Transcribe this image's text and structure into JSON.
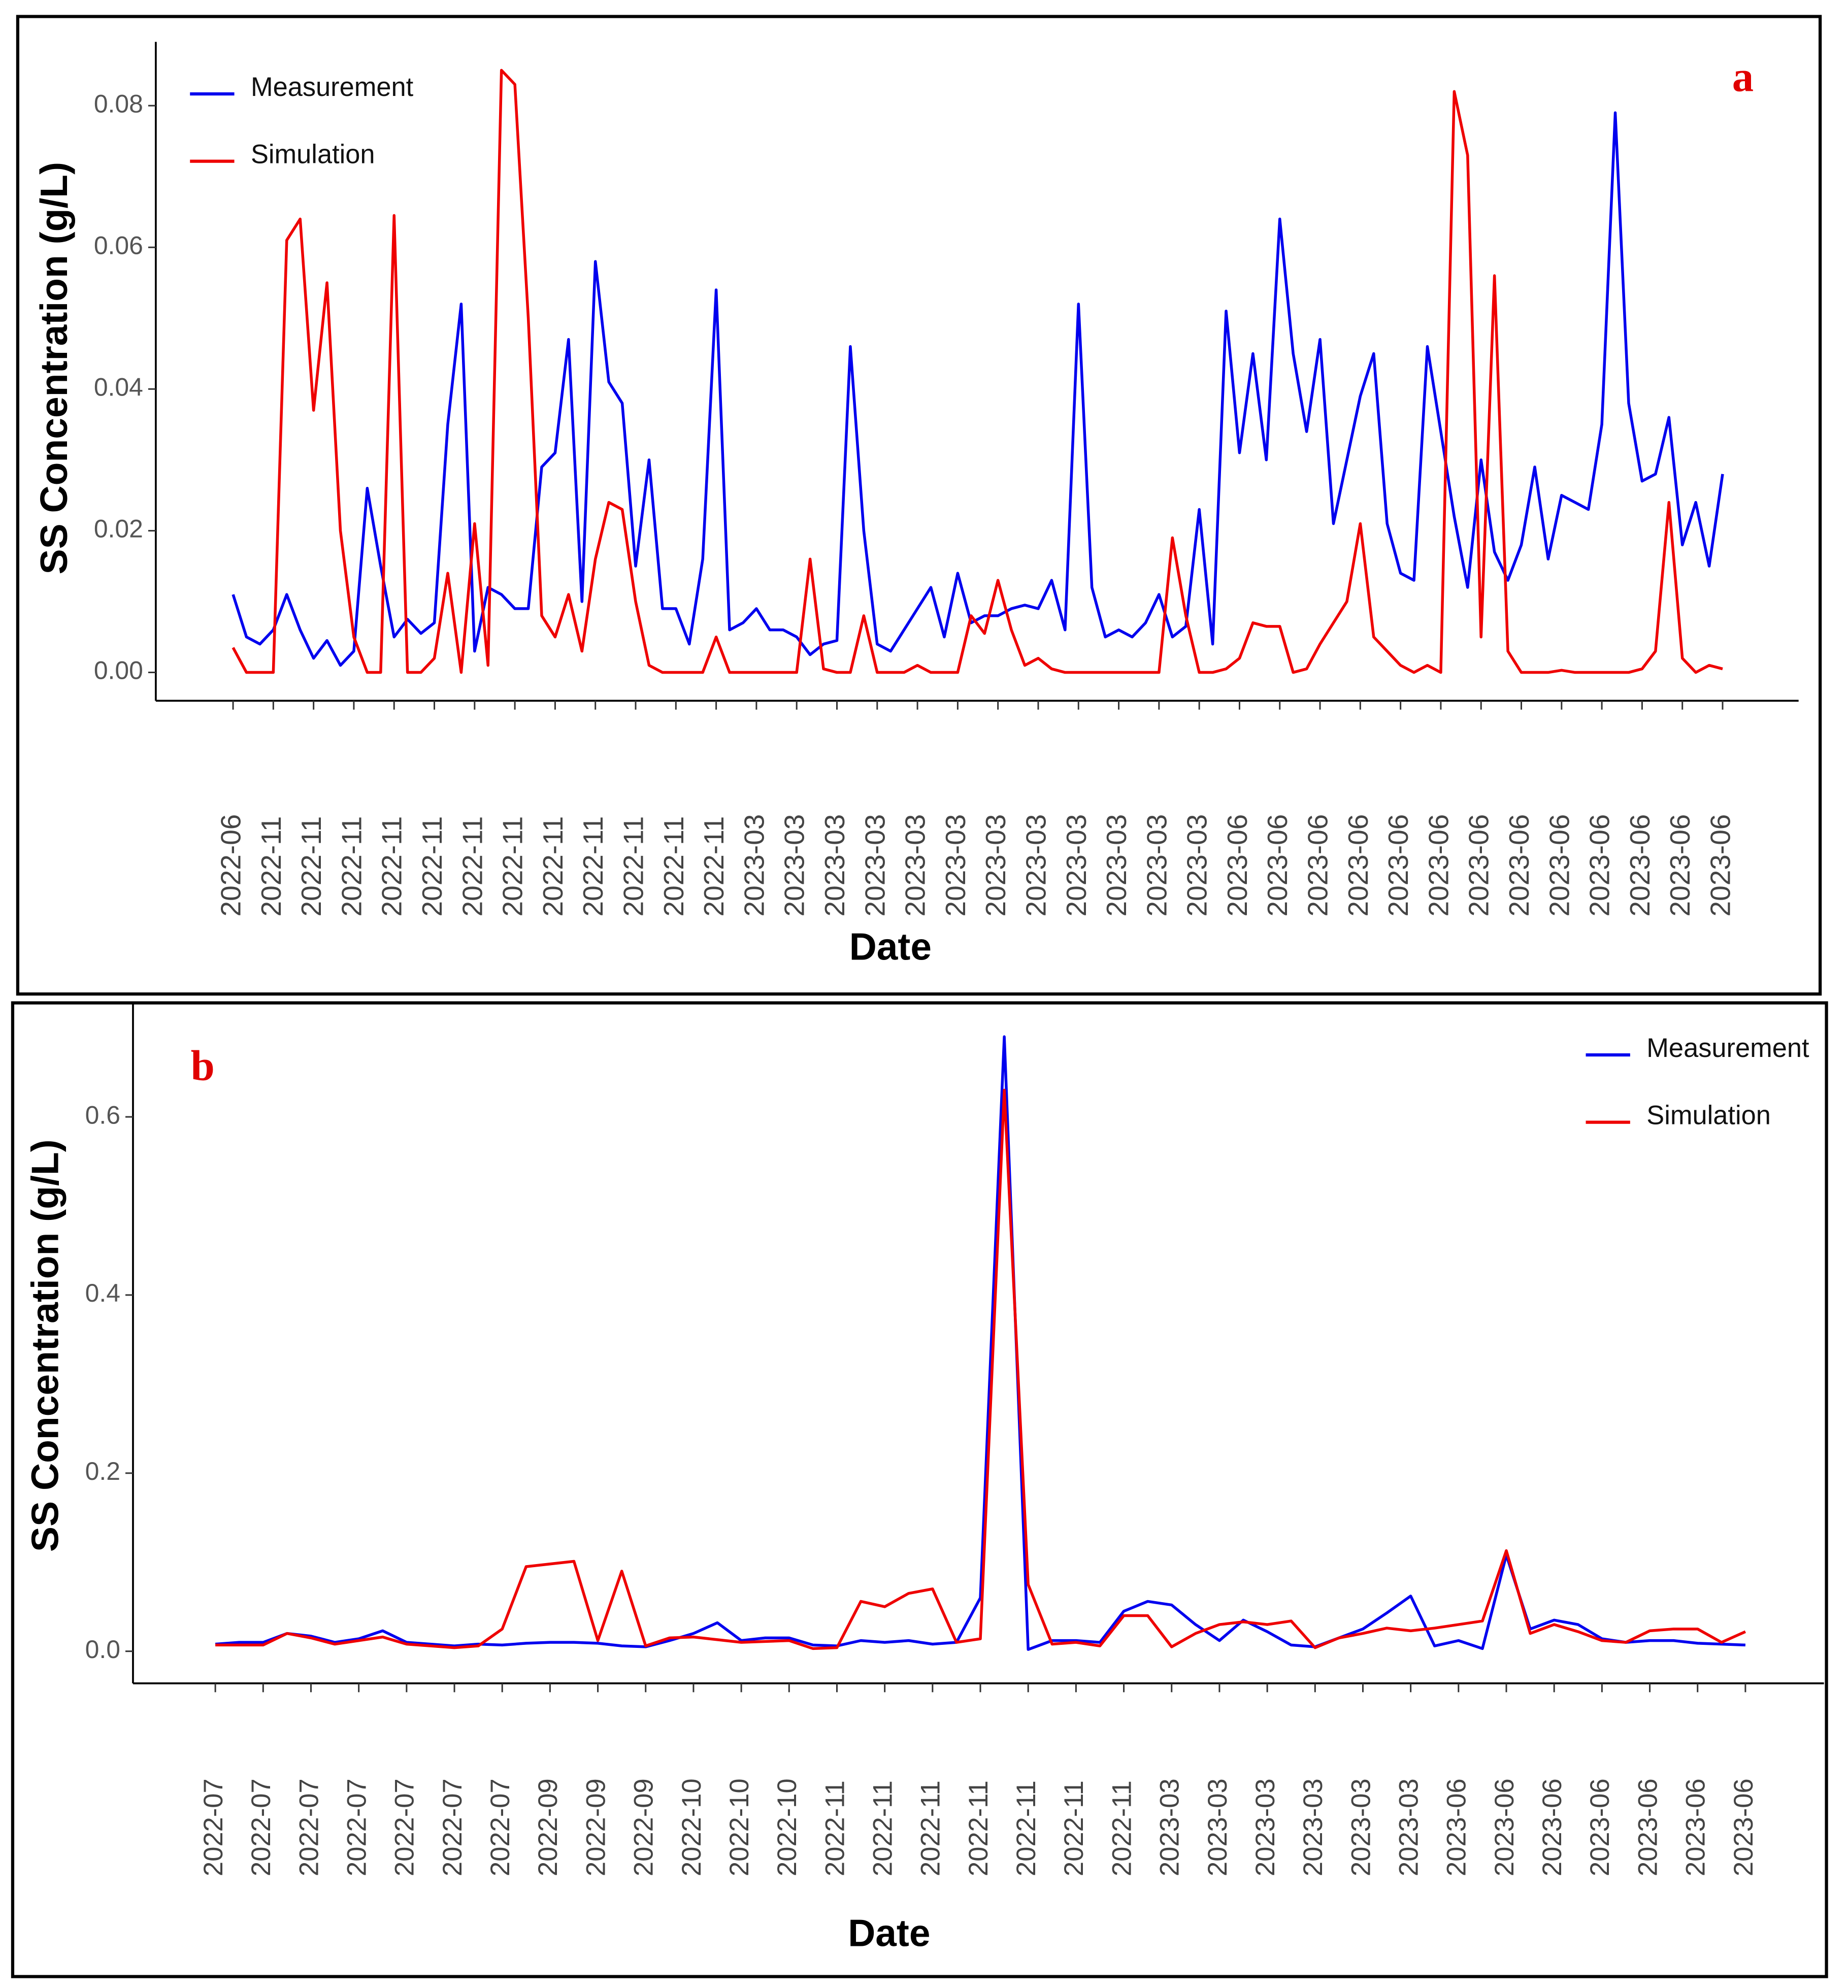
{
  "chart_data": [
    {
      "type": "line",
      "annotation": "a",
      "y_label": "SS Concentration (g/L)",
      "x_label": "Date",
      "legend": "upper left",
      "grid": false,
      "categories": [
        "2022-06",
        null,
        null,
        "2022-11",
        null,
        null,
        "2022-11",
        null,
        null,
        "2022-11",
        null,
        null,
        "2022-11",
        null,
        null,
        "2022-11",
        null,
        null,
        "2022-11",
        null,
        null,
        "2022-11",
        null,
        null,
        "2022-11",
        null,
        null,
        "2022-11",
        null,
        null,
        "2022-11",
        null,
        null,
        "2022-11",
        null,
        null,
        "2022-11",
        null,
        null,
        "2023-03",
        null,
        null,
        "2023-03",
        null,
        null,
        "2023-03",
        null,
        null,
        "2023-03",
        null,
        null,
        "2023-03",
        null,
        null,
        "2023-03",
        null,
        null,
        "2023-03",
        null,
        null,
        "2023-03",
        null,
        null,
        "2023-03",
        null,
        null,
        "2023-03",
        null,
        null,
        "2023-03",
        null,
        null,
        "2023-03",
        null,
        null,
        "2023-06",
        null,
        null,
        "2023-06",
        null,
        null,
        "2023-06",
        null,
        null,
        "2023-06",
        null,
        null,
        "2023-06",
        null,
        null,
        "2023-06",
        null,
        null,
        "2023-06",
        null,
        null,
        "2023-06",
        null,
        null,
        "2023-06",
        null,
        null,
        "2023-06",
        null,
        null,
        "2023-06",
        null,
        null,
        "2023-06",
        null,
        null,
        "2023-06"
      ],
      "series": [
        {
          "name": "Measurement",
          "color": "#0000ee",
          "values": [
            0.011,
            0.005,
            0.004,
            0.006,
            0.011,
            0.006,
            0.002,
            0.0045,
            0.001,
            0.003,
            0.026,
            0.015,
            0.005,
            0.0075,
            0.0055,
            0.007,
            0.035,
            0.052,
            0.003,
            0.012,
            0.011,
            0.009,
            0.009,
            0.029,
            0.031,
            0.047,
            0.01,
            0.058,
            0.041,
            0.038,
            0.015,
            0.03,
            0.009,
            0.009,
            0.004,
            0.016,
            0.054,
            0.006,
            0.007,
            0.009,
            0.006,
            0.006,
            0.005,
            0.0025,
            0.004,
            0.0045,
            0.046,
            0.02,
            0.004,
            0.003,
            0.006,
            0.009,
            0.012,
            0.005,
            0.014,
            0.007,
            0.008,
            0.008,
            0.009,
            0.0095,
            0.009,
            0.013,
            0.006,
            0.052,
            0.012,
            0.005,
            0.006,
            0.005,
            0.007,
            0.011,
            0.005,
            0.0065,
            0.023,
            0.004,
            0.051,
            0.031,
            0.045,
            0.03,
            0.064,
            0.045,
            0.034,
            0.047,
            0.021,
            0.03,
            0.039,
            0.045,
            0.021,
            0.014,
            0.013,
            0.046,
            0.034,
            0.022,
            0.012,
            0.03,
            0.017,
            0.013,
            0.018,
            0.029,
            0.016,
            0.025,
            0.024,
            0.023,
            0.035,
            0.079,
            0.038,
            0.027,
            0.028,
            0.036,
            0.018,
            0.024,
            0.015,
            0.028
          ]
        },
        {
          "name": "Simulation",
          "color": "#ee0000",
          "values": [
            0.0035,
            0,
            0,
            0,
            0.061,
            0.064,
            0.037,
            0.055,
            0.02,
            0.005,
            0,
            0,
            0.0645,
            0,
            0,
            0.002,
            0.014,
            0,
            0.021,
            0.001,
            0.085,
            0.083,
            0.05,
            0.008,
            0.005,
            0.011,
            0.003,
            0.016,
            0.024,
            0.023,
            0.01,
            0.001,
            0,
            0,
            0,
            0,
            0.005,
            0,
            0,
            0,
            0,
            0,
            0,
            0.016,
            0.0005,
            0,
            0,
            0.008,
            0,
            0,
            0,
            0.001,
            0,
            0,
            0,
            0.008,
            0.0055,
            0.013,
            0.006,
            0.001,
            0.002,
            0.0005,
            0,
            0,
            0,
            0,
            0,
            0,
            0,
            0,
            0.019,
            0.008,
            0,
            0,
            0.0005,
            0.002,
            0.007,
            0.0065,
            0.0065,
            0,
            0.0005,
            0.004,
            0.007,
            0.01,
            0.021,
            0.005,
            0.003,
            0.001,
            0,
            0.001,
            0,
            0.082,
            0.073,
            0.005,
            0.056,
            0.003,
            0,
            0,
            0,
            0.0003,
            0,
            0,
            0,
            0,
            0,
            0.0005,
            0.003,
            0.024,
            0.002,
            0,
            0.001,
            0.0005
          ]
        }
      ],
      "ylim": [
        -0.004,
        0.089
      ],
      "yticks": [
        {
          "value": 0,
          "label": "0.00"
        },
        {
          "value": 0.02,
          "label": "0.02"
        },
        {
          "value": 0.04,
          "label": "0.04"
        },
        {
          "value": 0.06,
          "label": "0.06"
        },
        {
          "value": 0.08,
          "label": "0.08"
        }
      ]
    },
    {
      "type": "line",
      "annotation": "b",
      "y_label": "SS Concentration (g/L)",
      "x_label": "Date",
      "legend": "upper right",
      "grid": false,
      "categories": [
        "2022-07",
        null,
        "2022-07",
        null,
        "2022-07",
        null,
        "2022-07",
        null,
        "2022-07",
        null,
        "2022-07",
        null,
        "2022-07",
        null,
        "2022-09",
        null,
        "2022-09",
        null,
        "2022-09",
        null,
        "2022-10",
        null,
        "2022-10",
        null,
        "2022-10",
        null,
        "2022-11",
        null,
        "2022-11",
        null,
        "2022-11",
        null,
        "2022-11",
        null,
        "2022-11",
        null,
        "2022-11",
        null,
        "2022-11",
        null,
        "2023-03",
        null,
        "2023-03",
        null,
        "2023-03",
        null,
        "2023-03",
        null,
        "2023-03",
        null,
        "2023-03",
        null,
        "2023-06",
        null,
        "2023-06",
        null,
        "2023-06",
        null,
        "2023-06",
        null,
        "2023-06",
        null,
        "2023-06",
        null,
        "2023-06"
      ],
      "series": [
        {
          "name": "Measurement",
          "color": "#0000ee",
          "values": [
            0.008,
            0.01,
            0.01,
            0.02,
            0.017,
            0.01,
            0.014,
            0.023,
            0.01,
            0.008,
            0.006,
            0.008,
            0.007,
            0.009,
            0.01,
            0.01,
            0.009,
            0.006,
            0.005,
            0.012,
            0.02,
            0.032,
            0.012,
            0.015,
            0.015,
            0.007,
            0.006,
            0.012,
            0.01,
            0.012,
            0.008,
            0.01,
            0.06,
            0.69,
            0.002,
            0.012,
            0.012,
            0.01,
            0.045,
            0.056,
            0.052,
            0.03,
            0.012,
            0.035,
            0.022,
            0.007,
            0.005,
            0.015,
            0.025,
            0.043,
            0.062,
            0.006,
            0.012,
            0.003,
            0.108,
            0.025,
            0.035,
            0.03,
            0.014,
            0.01,
            0.012,
            0.012,
            0.009,
            0.008,
            0.007
          ]
        },
        {
          "name": "Simulation",
          "color": "#ee0000",
          "values": [
            0.007,
            0.007,
            0.007,
            0.02,
            0.015,
            0.008,
            0.012,
            0.016,
            0.008,
            0.006,
            0.004,
            0.006,
            0.025,
            0.095,
            0.098,
            0.101,
            0.012,
            0.09,
            0.006,
            0.015,
            0.016,
            0.013,
            0.01,
            0.011,
            0.012,
            0.003,
            0.004,
            0.056,
            0.05,
            0.065,
            0.07,
            0.01,
            0.014,
            0.63,
            0.075,
            0.008,
            0.01,
            0.006,
            0.04,
            0.04,
            0.005,
            0.02,
            0.03,
            0.033,
            0.03,
            0.034,
            0.004,
            0.015,
            0.02,
            0.026,
            0.023,
            0.026,
            0.03,
            0.034,
            0.113,
            0.02,
            0.03,
            0.022,
            0.012,
            0.01,
            0.023,
            0.025,
            0.025,
            0.01,
            0.022
          ]
        }
      ],
      "ylim": [
        -0.036,
        0.728
      ],
      "yticks": [
        {
          "value": 0,
          "label": "0.0"
        },
        0.2,
        0.4,
        0.6
      ]
    }
  ]
}
